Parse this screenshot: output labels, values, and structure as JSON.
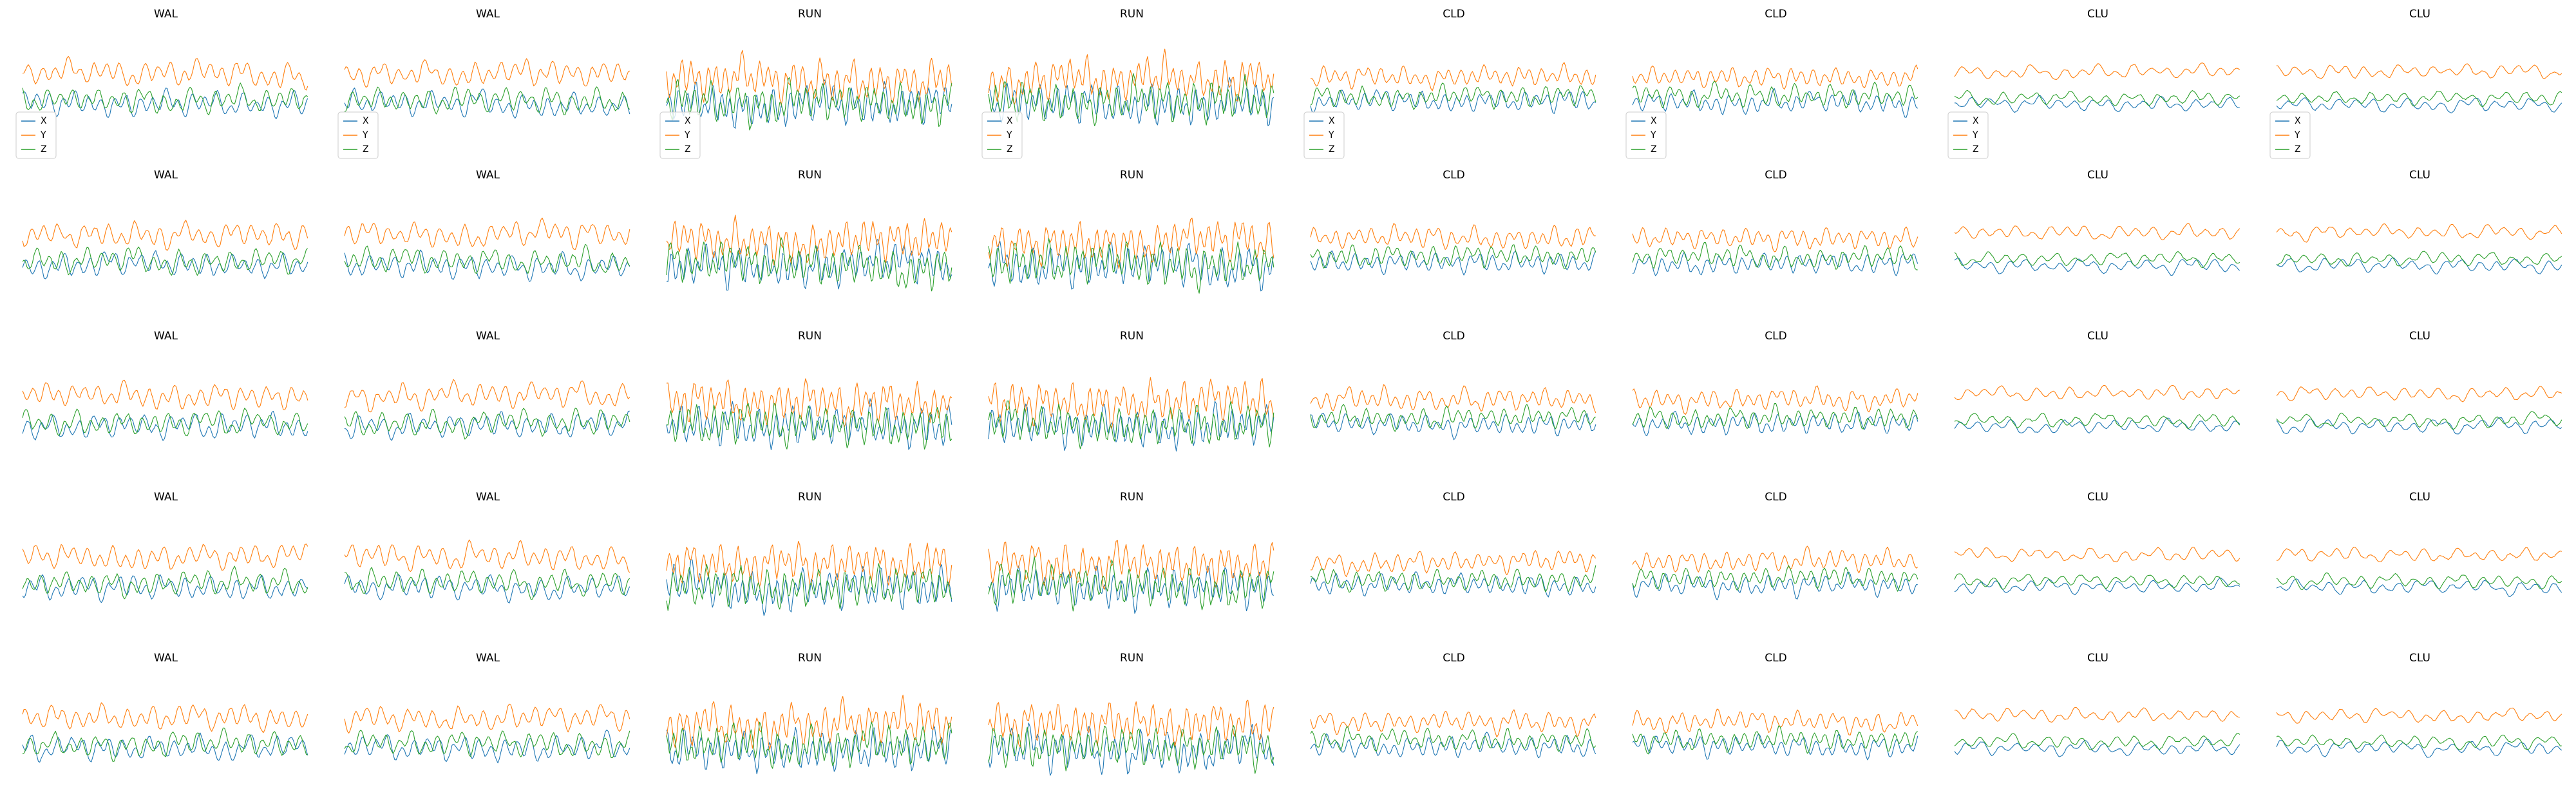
{
  "chart_data": {
    "type": "line",
    "layout": {
      "rows": 5,
      "cols": 8
    },
    "column_titles": [
      "WAL",
      "WAL",
      "RUN",
      "RUN",
      "CLD",
      "CLD",
      "CLU",
      "CLU"
    ],
    "legend": {
      "entries": [
        "X",
        "Y",
        "Z"
      ],
      "placement": "lower-left",
      "shown_on_row": 1
    },
    "axes_visible": false,
    "grid": false,
    "x_range": [
      0,
      200
    ],
    "y_range": [
      -2.6,
      3.4
    ],
    "series_colors": {
      "X": "#1f77b4",
      "Y": "#ff7f0e",
      "Z": "#2ca02c"
    },
    "activity_profiles": {
      "WAL": {
        "x_mean": 0.0,
        "y_mean": 1.5,
        "z_mean": 0.2,
        "amplitude": 0.65,
        "periods": [
          9,
          17,
          31
        ]
      },
      "RUN": {
        "x_mean": 0.0,
        "y_mean": 1.2,
        "z_mean": 0.1,
        "amplitude": 1.05,
        "periods": [
          6,
          11,
          19
        ]
      },
      "CLD": {
        "x_mean": 0.1,
        "y_mean": 1.3,
        "z_mean": 0.4,
        "amplitude": 0.55,
        "periods": [
          8,
          14,
          27
        ]
      },
      "CLU": {
        "x_mean": 0.0,
        "y_mean": 1.6,
        "z_mean": 0.3,
        "amplitude": 0.35,
        "periods": [
          12,
          23,
          41
        ]
      }
    }
  }
}
